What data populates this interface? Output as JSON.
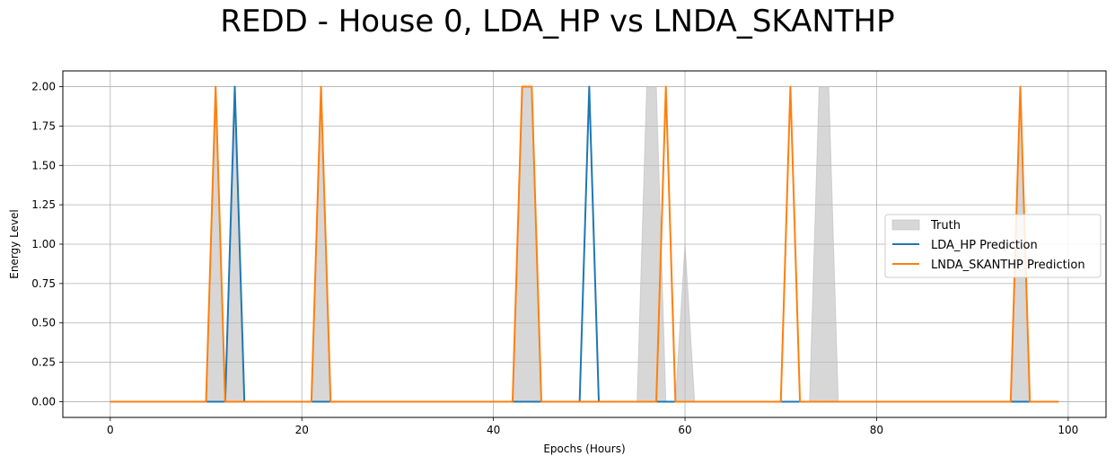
{
  "chart_data": {
    "type": "line",
    "title": "REDD - House 0, LDA_HP vs LNDA_SKANTHP",
    "xlabel": "Epochs (Hours)",
    "ylabel": "Energy Level",
    "xlim": [
      -4.95,
      103.95
    ],
    "ylim": [
      -0.1,
      2.1
    ],
    "xticks": [
      0,
      20,
      40,
      60,
      80,
      100
    ],
    "yticks": [
      0.0,
      0.25,
      0.5,
      0.75,
      1.0,
      1.25,
      1.5,
      1.75,
      2.0
    ],
    "xtick_labels": [
      "0",
      "20",
      "40",
      "60",
      "80",
      "100"
    ],
    "ytick_labels": [
      "0.00",
      "0.25",
      "0.50",
      "0.75",
      "1.00",
      "1.25",
      "1.50",
      "1.75",
      "2.00"
    ],
    "grid": true,
    "legend_position": "center-right",
    "x_count": 100,
    "series": [
      {
        "name": "Truth",
        "kind": "fill",
        "color": "#bdbdbd",
        "nonzero": {
          "11": 2,
          "13": 2,
          "22": 2,
          "43": 2,
          "44": 2,
          "56": 2,
          "57": 2,
          "60": 1,
          "74": 2,
          "75": 2,
          "95": 2
        }
      },
      {
        "name": "LDA_HP Prediction",
        "kind": "line",
        "color": "#1f77b4",
        "nonzero": {
          "13": 2,
          "50": 2
        }
      },
      {
        "name": "LNDA_SKANTHP Prediction",
        "kind": "line",
        "color": "#ff7f0e",
        "nonzero": {
          "11": 2,
          "22": 2,
          "43": 2,
          "44": 2,
          "58": 2,
          "71": 2,
          "95": 2
        }
      }
    ]
  }
}
